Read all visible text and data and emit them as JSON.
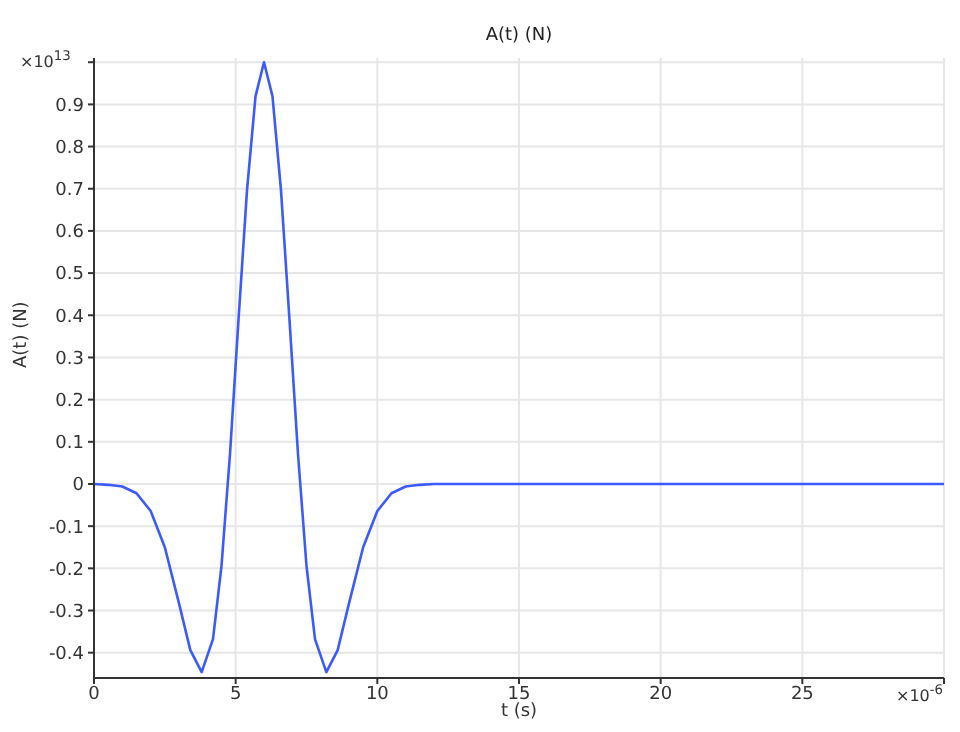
{
  "chart_data": {
    "type": "line",
    "title": "A(t) (N)",
    "xlabel": "t (s)",
    "ylabel": "A(t) (N)",
    "annotations": [
      "×10$^{13}$",
      "×10$^{-6}$"
    ],
    "x": [
      0,
      0.5,
      1,
      1.5,
      2,
      2.5,
      3,
      3.4,
      3.8,
      4.2,
      4.5,
      4.8,
      5.1,
      5.4,
      5.7,
      6,
      6.3,
      6.6,
      6.9,
      7.2,
      7.5,
      7.8,
      8.2,
      8.6,
      9,
      9.5,
      10,
      10.5,
      11,
      11.5,
      12,
      15,
      20,
      25,
      30
    ],
    "series": [
      {
        "color": "#3d5afe",
        "values": [
          0,
          -0.002,
          -0.006,
          -0.022,
          -0.064,
          -0.15,
          -0.283,
          -0.394,
          -0.446,
          -0.368,
          -0.194,
          0.071,
          0.389,
          0.696,
          0.919,
          1,
          0.919,
          0.696,
          0.389,
          0.071,
          -0.194,
          -0.368,
          -0.446,
          -0.394,
          -0.283,
          -0.15,
          -0.064,
          -0.022,
          -0.006,
          -0.002,
          0,
          0,
          0,
          0,
          0
        ]
      }
    ],
    "xlim": [
      0,
      30
    ],
    "xticks": [
      0,
      5,
      10,
      15,
      20,
      25,
      {
        "value": 30,
        "label": null
      }
    ],
    "ylim": [
      -0.46,
      1.01
    ],
    "yticks": [
      -0.4,
      -0.3,
      -0.2,
      -0.1,
      0,
      0.1,
      0.2,
      0.3,
      0.4,
      0.5,
      0.6,
      0.7,
      0.8,
      0.9,
      {
        "value": 1,
        "label": null
      }
    ],
    "grid": true,
    "legend": false,
    "marker": "none",
    "line_style": "solid"
  }
}
